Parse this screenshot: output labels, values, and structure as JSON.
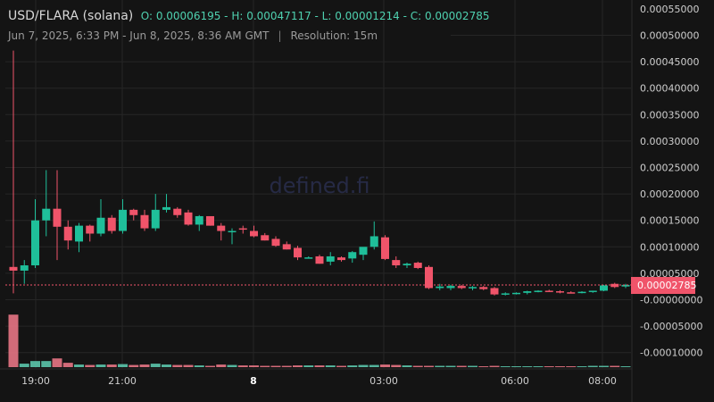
{
  "header": {
    "pair": "USD/FLARA (solana)",
    "ohlc": "O: 0.00006195 - H: 0.00047117 - L: 0.00001214 - C: 0.00002785",
    "range": "Jun 7, 2025, 6:33 PM - Jun 8, 2025, 8:36 AM GMT",
    "separator": "|",
    "resolution": "Resolution: 15m"
  },
  "watermark": "defined.fi",
  "colors": {
    "up": "#1fbf9a",
    "down": "#f0546a",
    "last_price_bg": "#f0546a",
    "background": "#141414"
  },
  "chart_data": {
    "type": "candlestick",
    "price_axis": {
      "ylim": [
        -0.00012,
        0.00055
      ],
      "ticks": [
        0.0005,
        0.00045,
        0.0004,
        0.00035,
        0.0003,
        0.00025,
        0.0002,
        0.00015,
        0.0001,
        5e-05,
        0.0,
        -5e-05,
        -0.0001
      ],
      "tick_labels": [
        "0.00050000",
        "0.00045000",
        "0.00040000",
        "0.00035000",
        "0.00030000",
        "0.00025000",
        "0.00020000",
        "0.00015000",
        "0.00010000",
        "0.00005000",
        "-0.00000000",
        "-0.00005000",
        "-0.00010000"
      ],
      "partial_top_label": "0.00055000"
    },
    "time_axis": {
      "labels": [
        "19:00",
        "21:00",
        "8",
        "03:00",
        "06:00",
        "08:00"
      ],
      "bold": [
        "8"
      ]
    },
    "last_price": {
      "value": 2.785e-05,
      "label": "0.00002785"
    },
    "candles": [
      {
        "o": 6.2e-05,
        "h": 0.000471,
        "l": 1.2e-05,
        "c": 5.5e-05
      },
      {
        "o": 5.5e-05,
        "h": 7.5e-05,
        "l": 3e-05,
        "c": 6.5e-05
      },
      {
        "o": 6.5e-05,
        "h": 0.00019,
        "l": 6e-05,
        "c": 0.00015
      },
      {
        "o": 0.00015,
        "h": 0.000245,
        "l": 0.00012,
        "c": 0.000172
      },
      {
        "o": 0.000172,
        "h": 0.000245,
        "l": 7.5e-05,
        "c": 0.000138
      },
      {
        "o": 0.000138,
        "h": 0.00015,
        "l": 9.5e-05,
        "c": 0.000112
      },
      {
        "o": 0.00011,
        "h": 0.000145,
        "l": 9e-05,
        "c": 0.00014
      },
      {
        "o": 0.00014,
        "h": 0.000142,
        "l": 0.00011,
        "c": 0.000125
      },
      {
        "o": 0.000125,
        "h": 0.00019,
        "l": 0.00012,
        "c": 0.000155
      },
      {
        "o": 0.000155,
        "h": 0.00016,
        "l": 0.000125,
        "c": 0.00013
      },
      {
        "o": 0.00013,
        "h": 0.00019,
        "l": 0.000125,
        "c": 0.00017
      },
      {
        "o": 0.00017,
        "h": 0.000172,
        "l": 0.00015,
        "c": 0.00016
      },
      {
        "o": 0.00016,
        "h": 0.00017,
        "l": 0.00013,
        "c": 0.000135
      },
      {
        "o": 0.000135,
        "h": 0.0002,
        "l": 0.00013,
        "c": 0.00017
      },
      {
        "o": 0.00017,
        "h": 0.0002,
        "l": 0.000165,
        "c": 0.000175
      },
      {
        "o": 0.000172,
        "h": 0.000175,
        "l": 0.000155,
        "c": 0.00016
      },
      {
        "o": 0.000165,
        "h": 0.00017,
        "l": 0.00014,
        "c": 0.000142
      },
      {
        "o": 0.000142,
        "h": 0.00016,
        "l": 0.00013,
        "c": 0.000158
      },
      {
        "o": 0.000158,
        "h": 0.000158,
        "l": 0.00014,
        "c": 0.00014
      },
      {
        "o": 0.00014,
        "h": 0.000145,
        "l": 0.000112,
        "c": 0.00013
      },
      {
        "o": 0.00013,
        "h": 0.000135,
        "l": 0.000105,
        "c": 0.00013
      },
      {
        "o": 0.000135,
        "h": 0.00014,
        "l": 0.000125,
        "c": 0.000133
      },
      {
        "o": 0.00013,
        "h": 0.00014,
        "l": 0.000118,
        "c": 0.00012
      },
      {
        "o": 0.000122,
        "h": 0.000126,
        "l": 0.000112,
        "c": 0.000112
      },
      {
        "o": 0.000115,
        "h": 0.00012,
        "l": 0.0001,
        "c": 0.000102
      },
      {
        "o": 0.000105,
        "h": 0.00011,
        "l": 9.5e-05,
        "c": 9.5e-05
      },
      {
        "o": 9.8e-05,
        "h": 0.000102,
        "l": 7.5e-05,
        "c": 8e-05
      },
      {
        "o": 8e-05,
        "h": 8.2e-05,
        "l": 7.8e-05,
        "c": 8e-05
      },
      {
        "o": 8.2e-05,
        "h": 8.5e-05,
        "l": 6.8e-05,
        "c": 6.8e-05
      },
      {
        "o": 7.2e-05,
        "h": 9e-05,
        "l": 6.5e-05,
        "c": 8.2e-05
      },
      {
        "o": 8e-05,
        "h": 8.2e-05,
        "l": 7.2e-05,
        "c": 7.5e-05
      },
      {
        "o": 7.8e-05,
        "h": 9.2e-05,
        "l": 7e-05,
        "c": 9e-05
      },
      {
        "o": 8.5e-05,
        "h": 9.8e-05,
        "l": 7.5e-05,
        "c": 0.0001
      },
      {
        "o": 0.0001,
        "h": 0.000148,
        "l": 9.5e-05,
        "c": 0.00012
      },
      {
        "o": 0.000118,
        "h": 0.000122,
        "l": 7.5e-05,
        "c": 7.7e-05
      },
      {
        "o": 7.5e-05,
        "h": 8.2e-05,
        "l": 6e-05,
        "c": 6.5e-05
      },
      {
        "o": 6.5e-05,
        "h": 7e-05,
        "l": 6e-05,
        "c": 6.8e-05
      },
      {
        "o": 7e-05,
        "h": 7.2e-05,
        "l": 5.8e-05,
        "c": 6e-05
      },
      {
        "o": 6.2e-05,
        "h": 6.5e-05,
        "l": 2e-05,
        "c": 2.2e-05
      },
      {
        "o": 2.2e-05,
        "h": 3e-05,
        "l": 1.8e-05,
        "c": 2.5e-05
      },
      {
        "o": 2.2e-05,
        "h": 2.8e-05,
        "l": 1.8e-05,
        "c": 2.6e-05
      },
      {
        "o": 2.6e-05,
        "h": 2.8e-05,
        "l": 2e-05,
        "c": 2.2e-05
      },
      {
        "o": 2.2e-05,
        "h": 2.6e-05,
        "l": 1.8e-05,
        "c": 2.4e-05
      },
      {
        "o": 2.4e-05,
        "h": 2.6e-05,
        "l": 1.8e-05,
        "c": 2e-05
      },
      {
        "o": 2.2e-05,
        "h": 2.4e-05,
        "l": 8e-06,
        "c": 1e-05
      },
      {
        "o": 1e-05,
        "h": 1.4e-05,
        "l": 8e-06,
        "c": 1.2e-05
      },
      {
        "o": 1.2e-05,
        "h": 1.4e-05,
        "l": 1e-05,
        "c": 1.3e-05
      },
      {
        "o": 1.3e-05,
        "h": 1.7e-05,
        "l": 1e-05,
        "c": 1.6e-05
      },
      {
        "o": 1.6e-05,
        "h": 1.8e-05,
        "l": 1.4e-05,
        "c": 1.7e-05
      },
      {
        "o": 1.7e-05,
        "h": 1.9e-05,
        "l": 1.5e-05,
        "c": 1.5e-05
      },
      {
        "o": 1.6e-05,
        "h": 1.8e-05,
        "l": 1.2e-05,
        "c": 1.4e-05
      },
      {
        "o": 1.4e-05,
        "h": 1.6e-05,
        "l": 1.2e-05,
        "c": 1.3e-05
      },
      {
        "o": 1.4e-05,
        "h": 1.6e-05,
        "l": 1.2e-05,
        "c": 1.5e-05
      },
      {
        "o": 1.5e-05,
        "h": 1.7e-05,
        "l": 1.3e-05,
        "c": 1.7e-05
      },
      {
        "o": 1.7e-05,
        "h": 2.8e-05,
        "l": 1.6e-05,
        "c": 2.7e-05
      },
      {
        "o": 3e-05,
        "h": 3.2e-05,
        "l": 2.2e-05,
        "c": 2.4e-05
      },
      {
        "o": 2.5e-05,
        "h": 3e-05,
        "l": 2.2e-05,
        "c": 2.8e-05
      }
    ],
    "volume": [
      120,
      8,
      14,
      14,
      20,
      10,
      6,
      5,
      6,
      6,
      7,
      5,
      6,
      8,
      6,
      5,
      5,
      4,
      3,
      6,
      5,
      4,
      4,
      3,
      3,
      3,
      4,
      4,
      4,
      4,
      3,
      4,
      5,
      5,
      6,
      5,
      4,
      3,
      3,
      3,
      3,
      3,
      3,
      2,
      3,
      2,
      2,
      2,
      2,
      2,
      2,
      2,
      2,
      3,
      3,
      3,
      2
    ]
  }
}
